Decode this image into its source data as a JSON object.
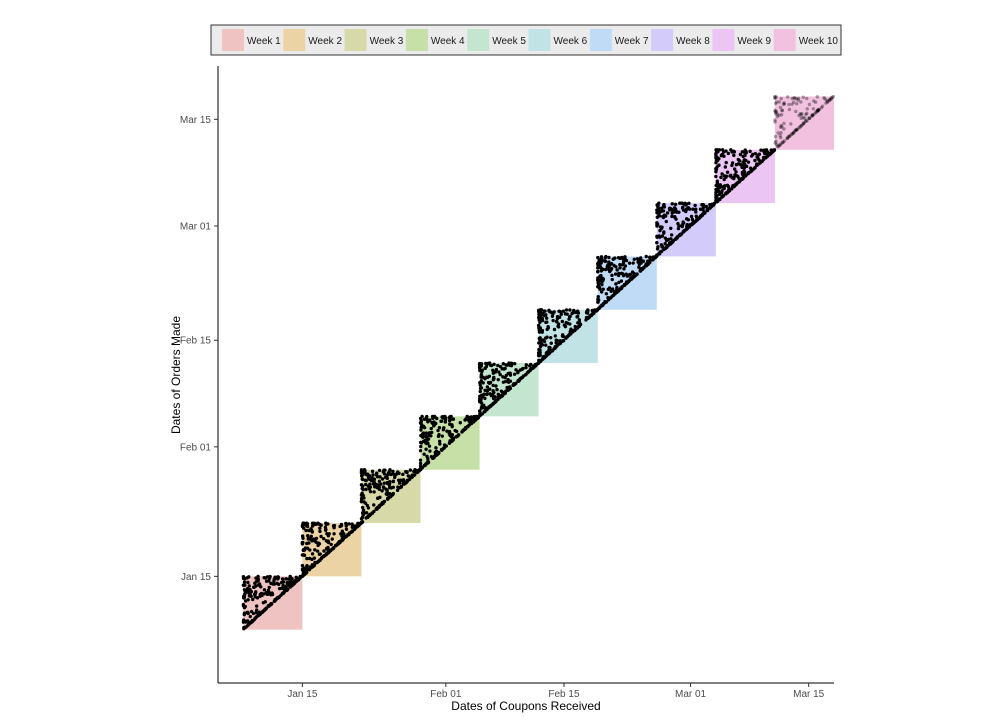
{
  "chart_data": {
    "type": "scatter",
    "xlabel": "Dates of Coupons Received",
    "ylabel": "Dates of Orders Made",
    "x_range": [
      "2016-01-05",
      "2016-03-18"
    ],
    "y_range": [
      "2016-01-01",
      "2016-03-22"
    ],
    "x_ticks": [
      {
        "date": "2016-01-15",
        "label": "Jan 15"
      },
      {
        "date": "2016-02-01",
        "label": "Feb 01"
      },
      {
        "date": "2016-02-15",
        "label": "Feb 15"
      },
      {
        "date": "2016-03-01",
        "label": "Mar 01"
      },
      {
        "date": "2016-03-15",
        "label": "Mar 15"
      }
    ],
    "y_ticks": [
      {
        "date": "2016-01-15",
        "label": "Jan 15"
      },
      {
        "date": "2016-02-01",
        "label": "Feb 01"
      },
      {
        "date": "2016-02-15",
        "label": "Feb 15"
      },
      {
        "date": "2016-03-01",
        "label": "Mar 01"
      },
      {
        "date": "2016-03-15",
        "label": "Mar 15"
      }
    ],
    "grid": false,
    "legend_position": "top",
    "series": [
      {
        "name": "Week 1",
        "start": "2016-01-08",
        "end": "2016-01-15",
        "color": "#f0c3c3"
      },
      {
        "name": "Week 2",
        "start": "2016-01-15",
        "end": "2016-01-22",
        "color": "#ecd3a5"
      },
      {
        "name": "Week 3",
        "start": "2016-01-22",
        "end": "2016-01-29",
        "color": "#d8d9a8"
      },
      {
        "name": "Week 4",
        "start": "2016-01-29",
        "end": "2016-02-05",
        "color": "#c7e0a8"
      },
      {
        "name": "Week 5",
        "start": "2016-02-05",
        "end": "2016-02-12",
        "color": "#c4e5cf"
      },
      {
        "name": "Week 6",
        "start": "2016-02-12",
        "end": "2016-02-19",
        "color": "#c1e3e5"
      },
      {
        "name": "Week 7",
        "start": "2016-02-19",
        "end": "2016-02-26",
        "color": "#bfdbf6"
      },
      {
        "name": "Week 8",
        "start": "2016-02-26",
        "end": "2016-03-04",
        "color": "#d3ccfa"
      },
      {
        "name": "Week 9",
        "start": "2016-03-04",
        "end": "2016-03-11",
        "color": "#ebc6f5"
      },
      {
        "name": "Week 10",
        "start": "2016-03-11",
        "end": "2016-03-18",
        "color": "#f2c1df"
      }
    ]
  }
}
